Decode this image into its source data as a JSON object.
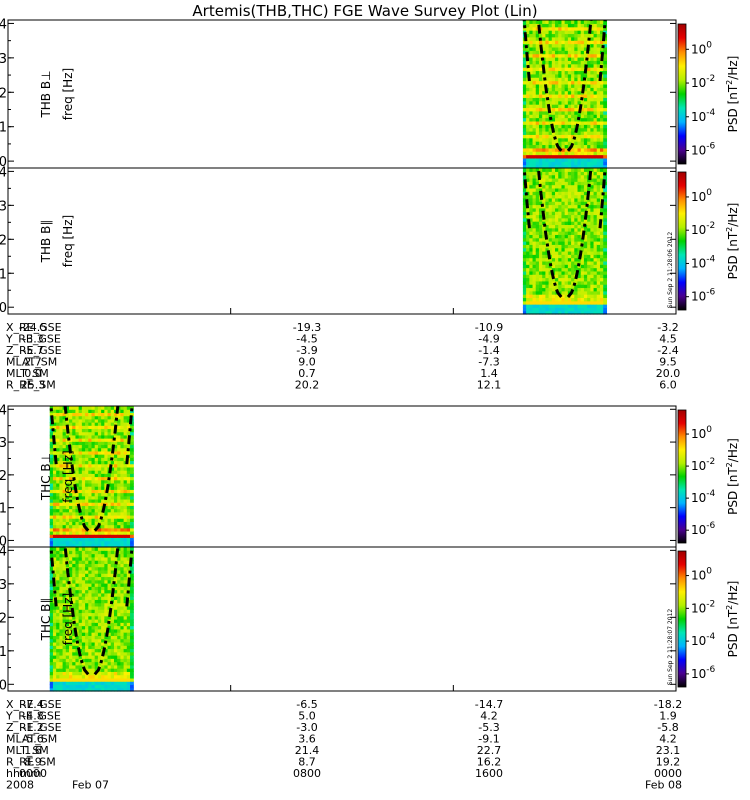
{
  "chart_data": {
    "type": "heatmap",
    "title": "Artemis(THB,THC) FGE Wave Survey Plot (Lin)",
    "colorbar": {
      "label_parts": [
        "PSD [nT",
        "2",
        "/Hz]"
      ],
      "ticks": [
        {
          "base": "10",
          "exp": "0",
          "value": 1
        },
        {
          "base": "10",
          "exp": "-2",
          "value": 0.01
        },
        {
          "base": "10",
          "exp": "-4",
          "value": 0.0001
        },
        {
          "base": "10",
          "exp": "-6",
          "value": 1e-06
        }
      ],
      "log_min": -6.8,
      "log_max": 1.5,
      "colors": [
        "#000000",
        "#4a0090",
        "#0000ff",
        "#00b4ff",
        "#00e6b4",
        "#00d200",
        "#b4f000",
        "#fff000",
        "#ff8c00",
        "#e60000",
        "#a00000"
      ]
    },
    "y_axis": {
      "ticks": [
        0,
        1,
        2,
        3,
        4
      ],
      "range": [
        -0.2,
        4.1
      ],
      "unit_label": "freq [Hz]"
    },
    "panels": [
      {
        "name": "THB B⊥",
        "probe": "THB",
        "active_start": 1110,
        "active_end": 1290,
        "style": "perp"
      },
      {
        "name": "THB B∥",
        "probe": "THB",
        "active_start": 1110,
        "active_end": 1290,
        "style": "par",
        "stamp": "Sun Sep  2 11:28:06 2012"
      },
      {
        "name": "THC B⊥",
        "probe": "THC",
        "active_start": 90,
        "active_end": 270,
        "style": "perp"
      },
      {
        "name": "THC B∥",
        "probe": "THC",
        "active_start": 90,
        "active_end": 270,
        "style": "par",
        "stamp": "Sun Sep  2 11:28:07 2012"
      }
    ],
    "x_axis": {
      "range_minutes": [
        0,
        1440
      ],
      "tick_minutes": [
        0,
        480,
        960,
        1440
      ]
    },
    "ephemeris_thb": {
      "labels": [
        "X_RE_GSE",
        "Y_RE_GSE",
        "Z_RE_GSE",
        "MLAT_SM",
        "MLT_SM",
        "R_RE_SM"
      ],
      "values": [
        [
          "-24.5",
          "-19.3",
          "-10.9",
          "-3.2"
        ],
        [
          "-3.3",
          "-4.5",
          "-4.9",
          "4.5"
        ],
        [
          "-5.7",
          "-3.9",
          "-1.4",
          "-2.4"
        ],
        [
          "2.7",
          "9.0",
          "-7.3",
          "9.5"
        ],
        [
          "0.0",
          "0.7",
          "1.4",
          "20.0"
        ],
        [
          "25.3",
          "20.2",
          "12.1",
          "6.0"
        ]
      ]
    },
    "ephemeris_thc": {
      "labels": [
        "X_RE_GSE",
        "Y_RE_GSE",
        "Z_RE_GSE",
        "MLAT_SM",
        "MLT_SM",
        "R_RE_SM",
        "hhmm"
      ],
      "values": [
        [
          "-7.4",
          "-6.5",
          "-14.7",
          "-18.2"
        ],
        [
          "-4.8",
          "5.0",
          "4.2",
          "1.9"
        ],
        [
          "-1.2",
          "-3.0",
          "-5.3",
          "-5.8"
        ],
        [
          "-5.6",
          "3.6",
          "-9.1",
          "4.2"
        ],
        [
          "1.6",
          "21.4",
          "22.7",
          "23.1"
        ],
        [
          "8.9",
          "8.7",
          "16.2",
          "19.2"
        ],
        [
          "0000",
          "0800",
          "1600",
          "0000"
        ]
      ],
      "date_row": [
        "2008",
        "Feb 07",
        "",
        "",
        "Feb 08"
      ]
    }
  }
}
